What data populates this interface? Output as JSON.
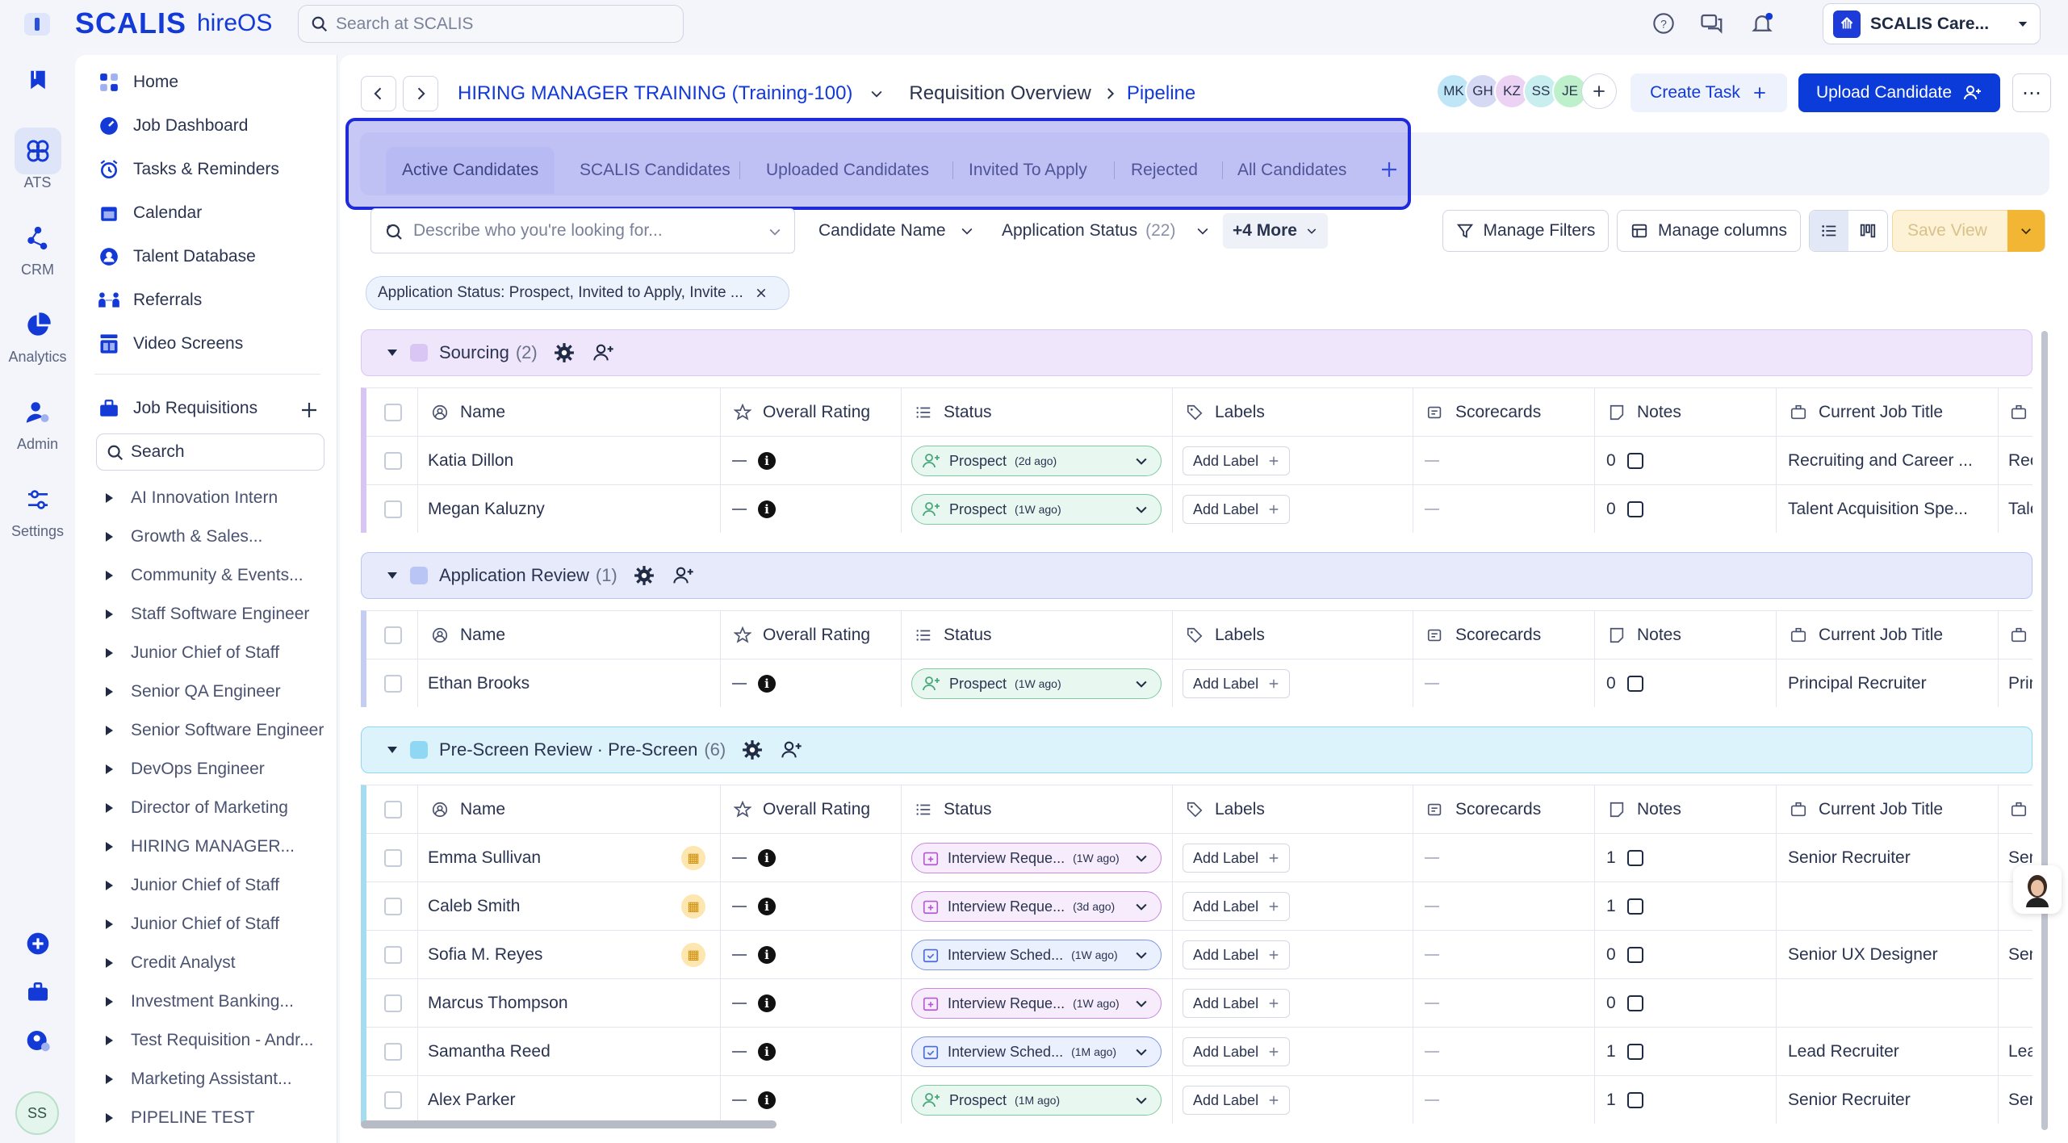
{
  "brand": {
    "name": "SCALIS",
    "product": "hireOS"
  },
  "search": {
    "placeholder": "Search at SCALIS"
  },
  "org": {
    "name": "SCALIS Care..."
  },
  "rail": [
    {
      "label": "ATS"
    },
    {
      "label": "CRM"
    },
    {
      "label": "Analytics"
    },
    {
      "label": "Admin"
    },
    {
      "label": "Settings"
    }
  ],
  "user": {
    "initials": "SS"
  },
  "nav": {
    "items": [
      {
        "label": "Home"
      },
      {
        "label": "Job Dashboard"
      },
      {
        "label": "Tasks & Reminders"
      },
      {
        "label": "Calendar"
      },
      {
        "label": "Talent Database"
      },
      {
        "label": "Referrals"
      },
      {
        "label": "Video Screens"
      }
    ],
    "requisitions_label": "Job Requisitions",
    "search_placeholder": "Search",
    "requisitions": [
      "AI Innovation Intern",
      "Growth & Sales...",
      "Community & Events...",
      "Staff Software Engineer",
      "Junior Chief of Staff",
      "Senior QA Engineer",
      "Senior Software Engineer",
      "DevOps Engineer",
      "Director of Marketing",
      "HIRING MANAGER...",
      "Junior Chief of Staff",
      "Junior Chief of Staff",
      "Credit Analyst",
      "Investment Banking...",
      "Test Requisition - Andr...",
      "Marketing Assistant...",
      "PIPELINE TEST"
    ]
  },
  "header": {
    "requisition": "HIRING MANAGER TRAINING (Training-100)",
    "crumb_overview": "Requisition Overview",
    "crumb_pipeline": "Pipeline",
    "collaborators": [
      "MK",
      "GH",
      "KZ",
      "SS",
      "JE"
    ],
    "create_task": "Create Task",
    "upload_candidate": "Upload Candidate"
  },
  "tabs": [
    "Active Candidates",
    "SCALIS Candidates",
    "Uploaded Candidates",
    "Invited To Apply",
    "Rejected",
    "All Candidates"
  ],
  "filters": {
    "search_placeholder": "Describe who you're looking for...",
    "candidate_name": "Candidate Name",
    "application_status": "Application Status",
    "application_status_count": "(22)",
    "more": "+4 More",
    "manage_filters": "Manage Filters",
    "manage_columns": "Manage columns",
    "save_view": "Save View"
  },
  "active_chip": "Application Status: Prospect, Invited to Apply, Invite ...",
  "columns": [
    "Name",
    "Overall Rating",
    "Status",
    "Labels",
    "Scorecards",
    "Notes",
    "Current Job Title"
  ],
  "add_label": "Add Label",
  "groups": [
    {
      "title": "Sourcing",
      "count": "(2)",
      "color": "#d9c6f5",
      "bg": "#efe6fb",
      "bar": "#d7c5f2",
      "rows": [
        {
          "name": "Katia Dillon",
          "status": "Prospect",
          "age": "(2d ago)",
          "kind": "prospect",
          "notes": "0",
          "title": "Recruiting and Career ...",
          "title2": "Rec",
          "cal": false
        },
        {
          "name": "Megan Kaluzny",
          "status": "Prospect",
          "age": "(1W ago)",
          "kind": "prospect",
          "notes": "0",
          "title": "Talent Acquisition Spe...",
          "title2": "Tale",
          "cal": false
        }
      ]
    },
    {
      "title": "Application Review",
      "count": "(1)",
      "color": "#b9c6f5",
      "bg": "#e6eafb",
      "bar": "#c5cdf2",
      "rows": [
        {
          "name": "Ethan Brooks",
          "status": "Prospect",
          "age": "(1W ago)",
          "kind": "prospect",
          "notes": "0",
          "title": "Principal Recruiter",
          "title2": "Prin",
          "cal": false
        }
      ]
    },
    {
      "title": "Pre-Screen Review · Pre-Screen",
      "count": "(6)",
      "color": "#8fd7f2",
      "bg": "#dcf3fb",
      "bar": "#a6dcef",
      "rows": [
        {
          "name": "Emma Sullivan",
          "status": "Interview Reque...",
          "age": "(1W ago)",
          "kind": "request",
          "notes": "1",
          "title": "Senior Recruiter",
          "title2": "Sen",
          "cal": true
        },
        {
          "name": "Caleb Smith",
          "status": "Interview Reque...",
          "age": "(3d ago)",
          "kind": "request",
          "notes": "1",
          "title": "",
          "title2": "",
          "cal": true
        },
        {
          "name": "Sofia M. Reyes",
          "status": "Interview Sched...",
          "age": "(1W ago)",
          "kind": "sched",
          "notes": "0",
          "title": "Senior UX Designer",
          "title2": "Sen",
          "cal": true
        },
        {
          "name": "Marcus Thompson",
          "status": "Interview Reque...",
          "age": "(1W ago)",
          "kind": "request",
          "notes": "0",
          "title": "",
          "title2": "",
          "cal": false
        },
        {
          "name": "Samantha Reed",
          "status": "Interview Sched...",
          "age": "(1M ago)",
          "kind": "sched",
          "notes": "1",
          "title": "Lead Recruiter",
          "title2": "Lead",
          "cal": false
        },
        {
          "name": "Alex Parker",
          "status": "Prospect",
          "age": "(1M ago)",
          "kind": "prospect",
          "notes": "1",
          "title": "Senior Recruiter",
          "title2": "Sen",
          "cal": false
        }
      ]
    }
  ],
  "colors": {
    "accent": "#1339d6",
    "primary_button": "#0b3bd8",
    "highlight": "#1f2bd8"
  }
}
